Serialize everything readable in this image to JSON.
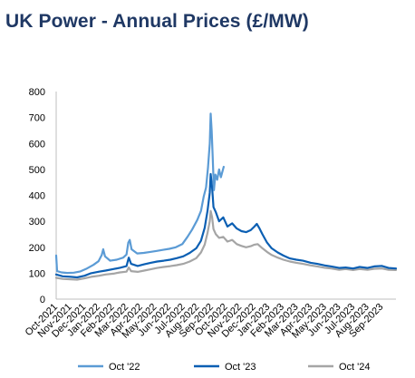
{
  "chart_data": {
    "type": "line",
    "title": "UK Power - Annual Prices (£/MW)",
    "xlabel": "",
    "ylabel": "",
    "ylim": [
      0,
      800
    ],
    "yticks": [
      0,
      100,
      200,
      300,
      400,
      500,
      600,
      700,
      800
    ],
    "grid": false,
    "legend_position": "bottom",
    "xlim": [
      "2021-10-01",
      "2023-10-01"
    ],
    "x_tick_labels": [
      "Oct-2021",
      "Nov-2021",
      "Dec-2021",
      "Jan-2022",
      "Feb-2022",
      "Mar-2022",
      "Apr-2022",
      "May-2022",
      "Jun-2022",
      "Jul-2022",
      "Aug-2022",
      "Sep-2022",
      "Oct-2022",
      "Nov-2022",
      "Dec-2022",
      "Jan-2023",
      "Feb-2023",
      "Mar-2023",
      "Apr-2023",
      "May-2023",
      "Jun-2023",
      "Jul-2023",
      "Aug-2023",
      "Sep-2023"
    ],
    "series": [
      {
        "name": "Oct '22",
        "color": "#5b9bd5",
        "points": [
          [
            "2021-10-01",
            168
          ],
          [
            "2021-10-03",
            108
          ],
          [
            "2021-10-12",
            103
          ],
          [
            "2021-10-25",
            101
          ],
          [
            "2021-11-08",
            102
          ],
          [
            "2021-11-22",
            107
          ],
          [
            "2021-12-06",
            118
          ],
          [
            "2021-12-20",
            132
          ],
          [
            "2021-12-31",
            146
          ],
          [
            "2022-01-07",
            170
          ],
          [
            "2022-01-10",
            192
          ],
          [
            "2022-01-14",
            165
          ],
          [
            "2022-01-25",
            148
          ],
          [
            "2022-02-08",
            152
          ],
          [
            "2022-02-22",
            160
          ],
          [
            "2022-03-01",
            172
          ],
          [
            "2022-03-05",
            218
          ],
          [
            "2022-03-08",
            228
          ],
          [
            "2022-03-12",
            192
          ],
          [
            "2022-03-24",
            176
          ],
          [
            "2022-04-07",
            178
          ],
          [
            "2022-04-21",
            182
          ],
          [
            "2022-05-05",
            186
          ],
          [
            "2022-05-19",
            190
          ],
          [
            "2022-06-01",
            194
          ],
          [
            "2022-06-15",
            200
          ],
          [
            "2022-06-29",
            212
          ],
          [
            "2022-07-10",
            240
          ],
          [
            "2022-07-20",
            268
          ],
          [
            "2022-07-31",
            305
          ],
          [
            "2022-08-08",
            340
          ],
          [
            "2022-08-14",
            395
          ],
          [
            "2022-08-19",
            430
          ],
          [
            "2022-08-23",
            505
          ],
          [
            "2022-08-27",
            600
          ],
          [
            "2022-08-29",
            715
          ],
          [
            "2022-08-31",
            650
          ],
          [
            "2022-09-02",
            560
          ],
          [
            "2022-09-05",
            420
          ],
          [
            "2022-09-08",
            480
          ],
          [
            "2022-09-12",
            460
          ],
          [
            "2022-09-16",
            500
          ],
          [
            "2022-09-20",
            470
          ],
          [
            "2022-09-26",
            510
          ]
        ]
      },
      {
        "name": "Oct '23",
        "color": "#0b5fb3",
        "points": [
          [
            "2021-10-01",
            95
          ],
          [
            "2021-10-15",
            88
          ],
          [
            "2021-11-01",
            86
          ],
          [
            "2021-11-15",
            84
          ],
          [
            "2021-12-01",
            90
          ],
          [
            "2021-12-15",
            100
          ],
          [
            "2022-01-01",
            106
          ],
          [
            "2022-01-15",
            110
          ],
          [
            "2022-02-01",
            116
          ],
          [
            "2022-02-15",
            121
          ],
          [
            "2022-03-01",
            127
          ],
          [
            "2022-03-06",
            160
          ],
          [
            "2022-03-11",
            136
          ],
          [
            "2022-03-25",
            128
          ],
          [
            "2022-04-08",
            134
          ],
          [
            "2022-04-22",
            140
          ],
          [
            "2022-05-06",
            145
          ],
          [
            "2022-05-20",
            148
          ],
          [
            "2022-06-03",
            152
          ],
          [
            "2022-06-17",
            158
          ],
          [
            "2022-07-01",
            165
          ],
          [
            "2022-07-15",
            178
          ],
          [
            "2022-07-29",
            196
          ],
          [
            "2022-08-08",
            225
          ],
          [
            "2022-08-16",
            275
          ],
          [
            "2022-08-22",
            340
          ],
          [
            "2022-08-27",
            410
          ],
          [
            "2022-08-29",
            482
          ],
          [
            "2022-09-01",
            430
          ],
          [
            "2022-09-04",
            355
          ],
          [
            "2022-09-09",
            335
          ],
          [
            "2022-09-16",
            300
          ],
          [
            "2022-09-25",
            315
          ],
          [
            "2022-10-04",
            280
          ],
          [
            "2022-10-14",
            292
          ],
          [
            "2022-10-24",
            272
          ],
          [
            "2022-11-03",
            262
          ],
          [
            "2022-11-13",
            258
          ],
          [
            "2022-11-23",
            266
          ],
          [
            "2022-12-01",
            280
          ],
          [
            "2022-12-06",
            290
          ],
          [
            "2022-12-11",
            275
          ],
          [
            "2022-12-18",
            250
          ],
          [
            "2022-12-28",
            218
          ],
          [
            "2023-01-07",
            196
          ],
          [
            "2023-01-20",
            180
          ],
          [
            "2023-02-01",
            168
          ],
          [
            "2023-02-15",
            157
          ],
          [
            "2023-03-01",
            152
          ],
          [
            "2023-03-15",
            148
          ],
          [
            "2023-04-01",
            140
          ],
          [
            "2023-04-15",
            136
          ],
          [
            "2023-05-01",
            130
          ],
          [
            "2023-05-15",
            126
          ],
          [
            "2023-06-01",
            120
          ],
          [
            "2023-06-15",
            122
          ],
          [
            "2023-07-01",
            118
          ],
          [
            "2023-07-15",
            124
          ],
          [
            "2023-08-01",
            120
          ],
          [
            "2023-08-15",
            126
          ],
          [
            "2023-09-01",
            128
          ],
          [
            "2023-09-15",
            120
          ],
          [
            "2023-10-01",
            118
          ]
        ]
      },
      {
        "name": "Oct '24",
        "color": "#a5a5a5",
        "points": [
          [
            "2021-10-01",
            82
          ],
          [
            "2021-10-15",
            78
          ],
          [
            "2021-11-01",
            76
          ],
          [
            "2021-11-15",
            75
          ],
          [
            "2021-12-01",
            80
          ],
          [
            "2021-12-15",
            86
          ],
          [
            "2022-01-01",
            90
          ],
          [
            "2022-01-15",
            95
          ],
          [
            "2022-02-01",
            98
          ],
          [
            "2022-02-15",
            103
          ],
          [
            "2022-03-01",
            106
          ],
          [
            "2022-03-06",
            122
          ],
          [
            "2022-03-11",
            108
          ],
          [
            "2022-03-25",
            105
          ],
          [
            "2022-04-08",
            110
          ],
          [
            "2022-04-22",
            115
          ],
          [
            "2022-05-06",
            120
          ],
          [
            "2022-05-20",
            124
          ],
          [
            "2022-06-03",
            127
          ],
          [
            "2022-06-17",
            131
          ],
          [
            "2022-07-01",
            136
          ],
          [
            "2022-07-15",
            145
          ],
          [
            "2022-07-29",
            158
          ],
          [
            "2022-08-08",
            180
          ],
          [
            "2022-08-16",
            210
          ],
          [
            "2022-08-22",
            255
          ],
          [
            "2022-08-27",
            300
          ],
          [
            "2022-08-29",
            340
          ],
          [
            "2022-09-01",
            315
          ],
          [
            "2022-09-04",
            270
          ],
          [
            "2022-09-09",
            250
          ],
          [
            "2022-09-16",
            236
          ],
          [
            "2022-09-25",
            240
          ],
          [
            "2022-10-04",
            222
          ],
          [
            "2022-10-14",
            228
          ],
          [
            "2022-10-24",
            212
          ],
          [
            "2022-11-03",
            205
          ],
          [
            "2022-11-13",
            200
          ],
          [
            "2022-11-23",
            204
          ],
          [
            "2022-12-01",
            210
          ],
          [
            "2022-12-08",
            212
          ],
          [
            "2022-12-18",
            196
          ],
          [
            "2022-12-28",
            182
          ],
          [
            "2023-01-07",
            170
          ],
          [
            "2023-01-20",
            160
          ],
          [
            "2023-02-01",
            152
          ],
          [
            "2023-02-15",
            145
          ],
          [
            "2023-03-01",
            140
          ],
          [
            "2023-03-15",
            136
          ],
          [
            "2023-04-01",
            130
          ],
          [
            "2023-04-15",
            126
          ],
          [
            "2023-05-01",
            121
          ],
          [
            "2023-05-15",
            118
          ],
          [
            "2023-06-01",
            113
          ],
          [
            "2023-06-15",
            116
          ],
          [
            "2023-07-01",
            112
          ],
          [
            "2023-07-15",
            116
          ],
          [
            "2023-08-01",
            113
          ],
          [
            "2023-08-15",
            117
          ],
          [
            "2023-09-01",
            118
          ],
          [
            "2023-09-15",
            113
          ],
          [
            "2023-10-01",
            112
          ]
        ]
      }
    ]
  }
}
